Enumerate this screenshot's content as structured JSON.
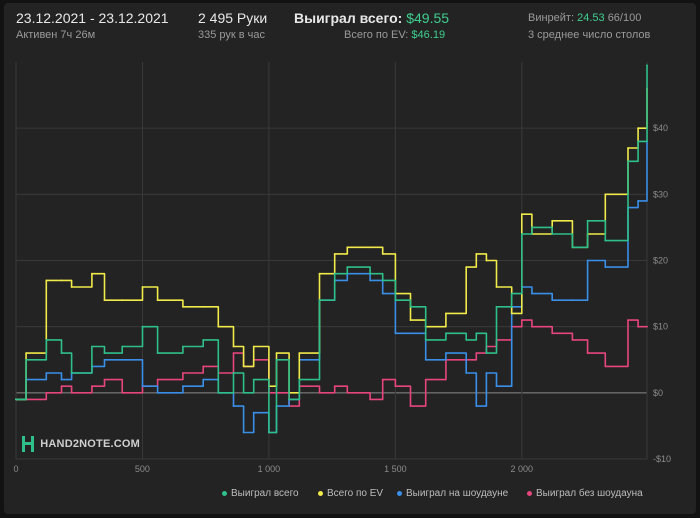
{
  "header": {
    "date_range": "23.12.2021 - 23.12.2021",
    "active": "Активен 7ч 26м",
    "hands": "2 495 Руки",
    "hands_per_hour": "335 рук в час",
    "won_total_label": "Выиграл всего:",
    "won_total_value": "$49.55",
    "ev_total_label": "Всего по EV:",
    "ev_total_value": "$46.19",
    "winrate_label": "Винрейт:",
    "winrate_value": "24.53",
    "winrate_suffix": "66/100",
    "tables": "3 среднее число столов"
  },
  "logo_text": "HAND2NOTE.COM",
  "colors": {
    "green": "#2fbf8a",
    "yellow": "#f0ea4a",
    "blue": "#3a8fe8",
    "pink": "#e6457d",
    "accent_text": "#3ecf8e"
  },
  "chart_data": {
    "type": "line",
    "xlabel": "",
    "ylabel": "",
    "xlim": [
      0,
      2495
    ],
    "ylim": [
      -10,
      50
    ],
    "x_ticks": [
      0,
      500,
      1000,
      1500,
      2000
    ],
    "x_tick_labels": [
      "0",
      "500",
      "1 000",
      "1 500",
      "2 000"
    ],
    "y_ticks": [
      -10,
      0,
      10,
      20,
      30,
      40
    ],
    "y_tick_labels": [
      "-$10",
      "$0",
      "$10",
      "$20",
      "$30",
      "$40"
    ],
    "legend_position": "bottom-right",
    "x": [
      0,
      40,
      120,
      180,
      220,
      300,
      350,
      420,
      500,
      560,
      660,
      740,
      800,
      860,
      900,
      940,
      1000,
      1030,
      1080,
      1120,
      1200,
      1260,
      1310,
      1400,
      1450,
      1500,
      1560,
      1620,
      1700,
      1780,
      1820,
      1860,
      1900,
      1960,
      2000,
      2040,
      2120,
      2200,
      2260,
      2330,
      2420,
      2460,
      2495
    ],
    "series": [
      {
        "name": "Выиграл всего",
        "color": "#2fbf8a",
        "values": [
          -1,
          5,
          8,
          6,
          3,
          7,
          6,
          7,
          10,
          6,
          7,
          8,
          0,
          3,
          0,
          2,
          -6,
          5,
          -1,
          2,
          14,
          18,
          19,
          18,
          17,
          14,
          13,
          8,
          9,
          8,
          9,
          6,
          13,
          15,
          24,
          25,
          24,
          22,
          26,
          23,
          35,
          38,
          49.5
        ]
      },
      {
        "name": "Всего по EV",
        "color": "#f0ea4a",
        "values": [
          -1,
          6,
          17,
          17,
          16,
          18,
          14,
          14,
          16,
          14,
          13,
          13,
          10,
          7,
          4,
          7,
          1,
          6,
          0,
          6,
          18,
          21,
          22,
          22,
          21,
          15,
          11,
          10,
          12,
          19,
          21,
          20,
          16,
          12,
          27,
          24,
          26,
          22,
          24,
          30,
          37,
          40,
          46
        ]
      },
      {
        "name": "Выиграл на шоудауне",
        "color": "#3a8fe8",
        "values": [
          -1,
          2,
          3,
          2,
          3,
          4,
          5,
          5,
          1,
          0,
          1,
          2,
          0,
          -2,
          -6,
          -3,
          -6,
          -2,
          -1,
          5,
          14,
          17,
          18,
          17,
          15,
          9,
          9,
          5,
          6,
          3,
          -2,
          3,
          1,
          13,
          16,
          15,
          14,
          14,
          20,
          19,
          28,
          29,
          38
        ]
      },
      {
        "name": "Выиграл без шоудауна",
        "color": "#e6457d",
        "values": [
          -1,
          -1,
          0,
          1,
          0,
          1,
          2,
          0,
          1,
          2,
          3,
          4,
          3,
          6,
          4,
          5,
          0,
          0,
          -2,
          1,
          0,
          1,
          0,
          -1,
          2,
          1,
          -2,
          2,
          5,
          5,
          6,
          7,
          8,
          10,
          11,
          10,
          9,
          8,
          6,
          4,
          11,
          10,
          10
        ]
      }
    ]
  }
}
